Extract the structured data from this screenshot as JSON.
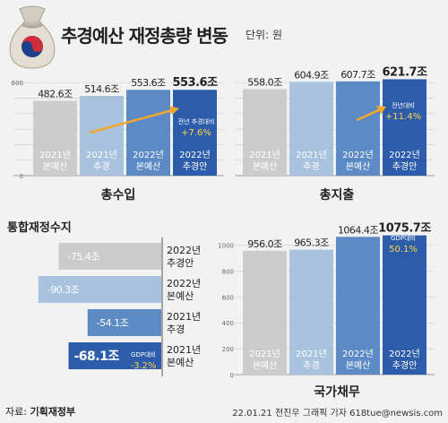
{
  "header": {
    "title": "추경예산 재정총량 변동",
    "unit": "단위: 원",
    "logo_icon": "money-bag-icon"
  },
  "footer": {
    "source_label": "자료: ",
    "source": "기획재정부",
    "credit": "22.01.21 전진우 그래픽 기자 618tue@newsis.com"
  },
  "colors": {
    "c2021base": "#cccccc",
    "c2021supp": "#a9c3de",
    "c2022base": "#5b8ac4",
    "c2022supp": "#2d5daa",
    "arrow": "#f0a830",
    "highlight": "#ffd24a"
  },
  "chart_data": [
    {
      "type": "bar",
      "title": "총수입",
      "categories": [
        "2021년 본예산",
        "2021년 추경",
        "2022년 본예산",
        "2022년 추경안"
      ],
      "values": [
        482.6,
        514.6,
        553.6,
        553.6
      ],
      "value_labels": [
        "482.6조",
        "514.6조",
        "553.6조",
        "553.6조"
      ],
      "yticks": [
        0,
        100,
        200,
        300,
        400,
        500,
        600
      ],
      "ytick_labels": [
        "0",
        "",
        "",
        "",
        "",
        "",
        "600"
      ],
      "ylim": [
        0,
        630
      ],
      "annotation": {
        "label": "전년 추경대비",
        "value": "+7.6%"
      }
    },
    {
      "type": "bar",
      "title": "총지출",
      "categories": [
        "2021년 본예산",
        "2021년 추경",
        "2022년 본예산",
        "2022년 추경안"
      ],
      "values": [
        558.0,
        604.9,
        607.7,
        621.7
      ],
      "value_labels": [
        "558.0조",
        "604.9조",
        "607.7조",
        "621.7조"
      ],
      "yticks": [
        0,
        100,
        200,
        300,
        400,
        500,
        600
      ],
      "ylim": [
        0,
        630
      ],
      "annotation": {
        "label": "전년대비",
        "value": "+11.4%"
      }
    },
    {
      "type": "bar",
      "orientation": "horizontal",
      "title": "통합재정수지",
      "categories": [
        "2022년 추경안",
        "2022년 본예산",
        "2021년 추경",
        "2021년 본예산"
      ],
      "values": [
        -75.4,
        -90.3,
        -54.1,
        -68.1
      ],
      "value_labels": [
        "-75.4조",
        "-90.3조",
        "-54.1조",
        "-68.1조"
      ],
      "xlim": [
        -100,
        0
      ],
      "annotation": {
        "label": "GDP대비",
        "value": "-3.2%"
      }
    },
    {
      "type": "bar",
      "title": "국가채무",
      "categories": [
        "2021년 본예산",
        "2021년 추경",
        "2022년 본예산",
        "2022년 추경안"
      ],
      "values": [
        956.0,
        965.3,
        1064.4,
        1075.7
      ],
      "value_labels": [
        "956.0조",
        "965.3조",
        "1064.4조",
        "1075.7조"
      ],
      "yticks": [
        0,
        200,
        400,
        600,
        800,
        1000
      ],
      "ytick_labels": [
        "0",
        "200",
        "400",
        "600",
        "800",
        "1000"
      ],
      "ylim": [
        0,
        1080
      ],
      "annotation": {
        "label": "GDP대비",
        "value": "50.1%"
      }
    }
  ]
}
